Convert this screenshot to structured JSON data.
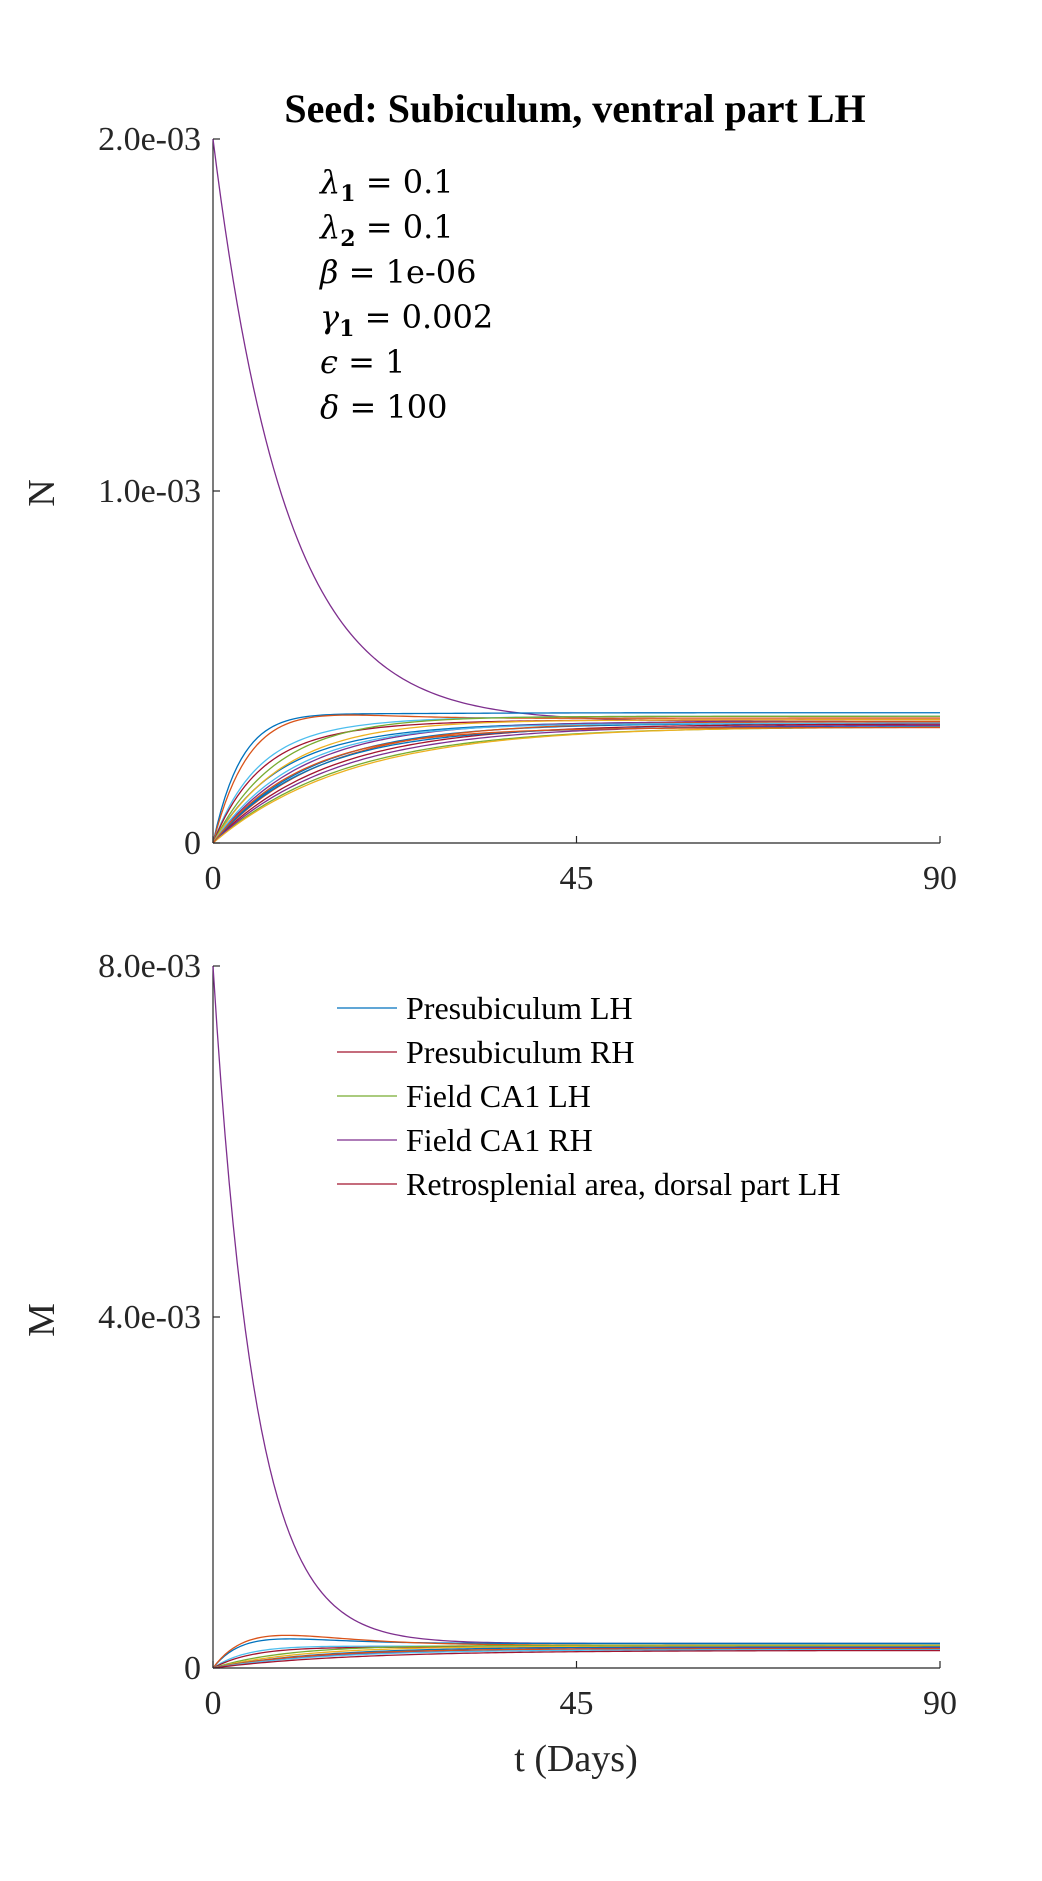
{
  "chart_data": [
    {
      "type": "line",
      "title": "Seed: Subiculum, ventral part LH",
      "xlabel": "",
      "ylabel": "N",
      "xlim": [
        0,
        90
      ],
      "ylim": [
        0,
        0.002
      ],
      "xticks": [
        "0",
        "45",
        "90"
      ],
      "yticks": [
        "0",
        "1.0e-03",
        "2.0e-03"
      ],
      "params": [
        {
          "symbol": "λ",
          "sub": "1",
          "value": "0.1"
        },
        {
          "symbol": "λ",
          "sub": "2",
          "value": "0.1"
        },
        {
          "symbol": "β",
          "sub": "",
          "value": "1e-06"
        },
        {
          "symbol": "γ",
          "sub": "1",
          "value": "0.002"
        },
        {
          "symbol": "ϵ",
          "sub": "",
          "value": "1"
        },
        {
          "symbol": "δ",
          "sub": "",
          "value": "100"
        }
      ],
      "series_note": "many regional curves; decaying seed curve starts at 0.002, others rise and converge near 3.5e-04",
      "series": [
        {
          "color": "#7E2F8E",
          "kind": "decay",
          "start": 0.002,
          "final": 0.000345,
          "tau": 9
        },
        {
          "color": "#0072BD",
          "kind": "overshoot",
          "peak": 0.00047,
          "tpeak": 12,
          "final": 0.00037
        },
        {
          "color": "#D95319",
          "kind": "overshoot",
          "peak": 0.00048,
          "tpeak": 16,
          "final": 0.000355
        },
        {
          "color": "#4DBEEE",
          "kind": "overshoot",
          "peak": 0.0004,
          "tpeak": 14,
          "final": 0.00036
        },
        {
          "color": "#A2142F",
          "kind": "overshoot",
          "peak": 0.00039,
          "tpeak": 15,
          "final": 0.00035
        },
        {
          "color": "#0072BD",
          "kind": "overshoot",
          "peak": 0.00038,
          "tpeak": 20,
          "final": 0.000345
        },
        {
          "color": "#77AC30",
          "kind": "rise",
          "final": 0.00036,
          "tau": 8
        },
        {
          "color": "#EDB120",
          "kind": "rise",
          "final": 0.00035,
          "tau": 9
        },
        {
          "color": "#7E2F8E",
          "kind": "rise",
          "final": 0.000345,
          "tau": 11
        },
        {
          "color": "#0072BD",
          "kind": "rise",
          "final": 0.00034,
          "tau": 12
        },
        {
          "color": "#D95319",
          "kind": "rise",
          "final": 0.000345,
          "tau": 13
        },
        {
          "color": "#4DBEEE",
          "kind": "rise",
          "final": 0.00034,
          "tau": 10
        },
        {
          "color": "#A2142F",
          "kind": "rise",
          "final": 0.000338,
          "tau": 14
        },
        {
          "color": "#77AC30",
          "kind": "rise",
          "final": 0.00033,
          "tau": 16
        },
        {
          "color": "#7E2F8E",
          "kind": "rise",
          "final": 0.000335,
          "tau": 15
        },
        {
          "color": "#EDB120",
          "kind": "rise",
          "final": 0.000332,
          "tau": 17
        },
        {
          "color": "#0072BD",
          "kind": "rise",
          "final": 0.00033,
          "tau": 12
        },
        {
          "color": "#D95319",
          "kind": "rise",
          "final": 0.000328,
          "tau": 11
        }
      ]
    },
    {
      "type": "line",
      "title": "",
      "xlabel": "t (Days)",
      "ylabel": "M",
      "xlim": [
        0,
        90
      ],
      "ylim": [
        0,
        0.008
      ],
      "xticks": [
        "0",
        "45",
        "90"
      ],
      "yticks": [
        "0",
        "4.0e-03",
        "8.0e-03"
      ],
      "legend": [
        {
          "label": "Presubiculum LH",
          "color": "#0072BD"
        },
        {
          "label": "Presubiculum RH",
          "color": "#A2142F"
        },
        {
          "label": "Field CA1 LH",
          "color": "#77AC30"
        },
        {
          "label": "Field CA1 RH",
          "color": "#7E2F8E"
        },
        {
          "label": "Retrosplenial area, dorsal part LH",
          "color": "#A2142F"
        }
      ],
      "legend_position": "top",
      "series": [
        {
          "color": "#7E2F8E",
          "kind": "decay",
          "start": 0.008,
          "final": 0.00028,
          "tau": 5.2
        },
        {
          "color": "#0072BD",
          "kind": "overshoot",
          "peak": 0.00044,
          "tpeak": 13,
          "final": 0.00028
        },
        {
          "color": "#D95319",
          "kind": "overshoot",
          "peak": 0.00048,
          "tpeak": 15,
          "final": 0.00026
        },
        {
          "color": "#4DBEEE",
          "kind": "overshoot",
          "peak": 0.00032,
          "tpeak": 14,
          "final": 0.00025
        },
        {
          "color": "#A2142F",
          "kind": "overshoot",
          "peak": 0.0003,
          "tpeak": 16,
          "final": 0.00024
        },
        {
          "color": "#77AC30",
          "kind": "rise",
          "final": 0.00026,
          "tau": 9
        },
        {
          "color": "#EDB120",
          "kind": "rise",
          "final": 0.00025,
          "tau": 11
        },
        {
          "color": "#0072BD",
          "kind": "rise",
          "final": 0.00024,
          "tau": 13
        },
        {
          "color": "#7E2F8E",
          "kind": "rise",
          "final": 0.00023,
          "tau": 15
        },
        {
          "color": "#D95319",
          "kind": "rise",
          "final": 0.00022,
          "tau": 12
        },
        {
          "color": "#4DBEEE",
          "kind": "rise",
          "final": 0.00021,
          "tau": 14
        },
        {
          "color": "#A2142F",
          "kind": "rise",
          "final": 0.0002,
          "tau": 17
        }
      ]
    }
  ]
}
